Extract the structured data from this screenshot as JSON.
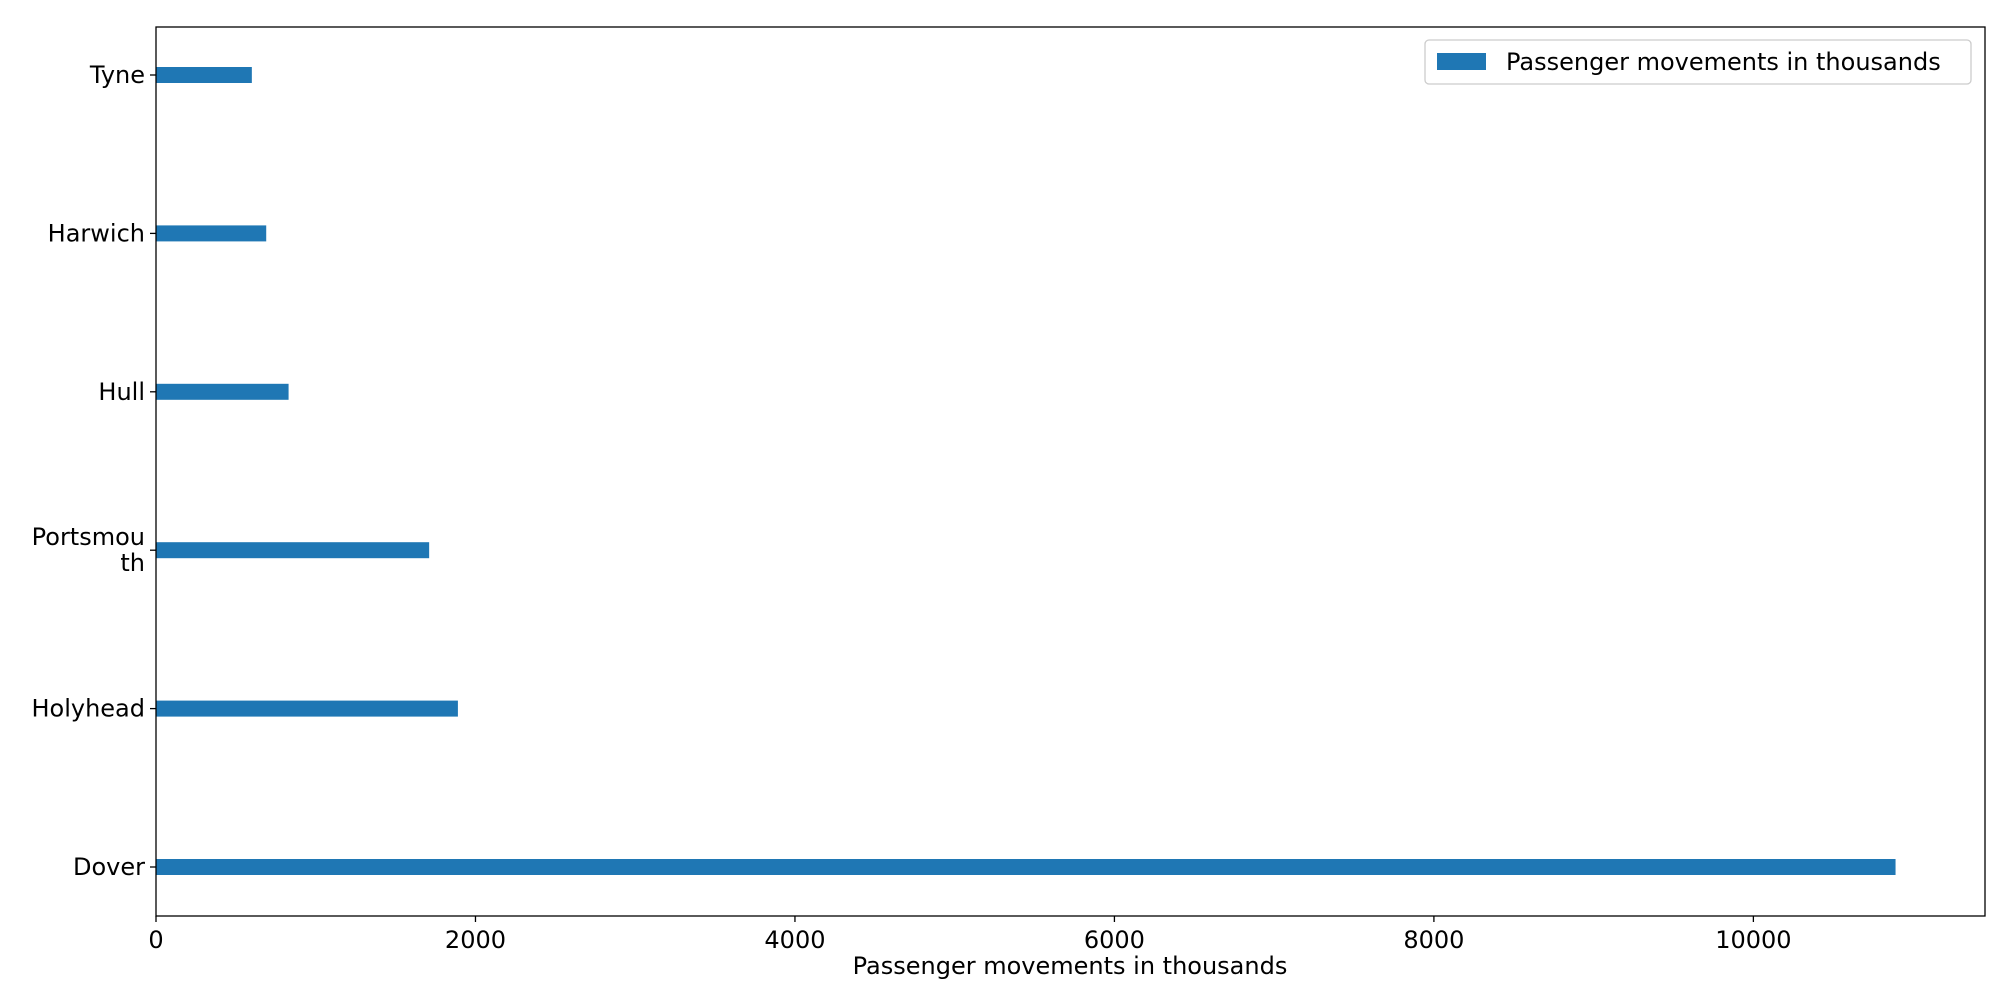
{
  "chart_data": {
    "type": "bar",
    "orientation": "horizontal",
    "categories": [
      "Dover",
      "Holyhead",
      "Portsmouth",
      "Hull",
      "Harwich",
      "Tyne"
    ],
    "category_display": [
      [
        "Dover"
      ],
      [
        "Holyhead"
      ],
      [
        "Portsmou",
        "th"
      ],
      [
        "Hull"
      ],
      [
        "Harwich"
      ],
      [
        "Tyne"
      ]
    ],
    "series": [
      {
        "name": "Passenger movements in thousands",
        "values": [
          10890,
          1890,
          1710,
          830,
          690,
          600
        ],
        "color": "#1f77b4"
      }
    ],
    "xlabel": "Passenger movements in thousands",
    "ylabel": "",
    "title": "",
    "xlim": [
      0,
      11450
    ],
    "xticks": [
      0,
      2000,
      4000,
      6000,
      8000,
      10000
    ],
    "legend_position": "top-right",
    "grid": false
  }
}
